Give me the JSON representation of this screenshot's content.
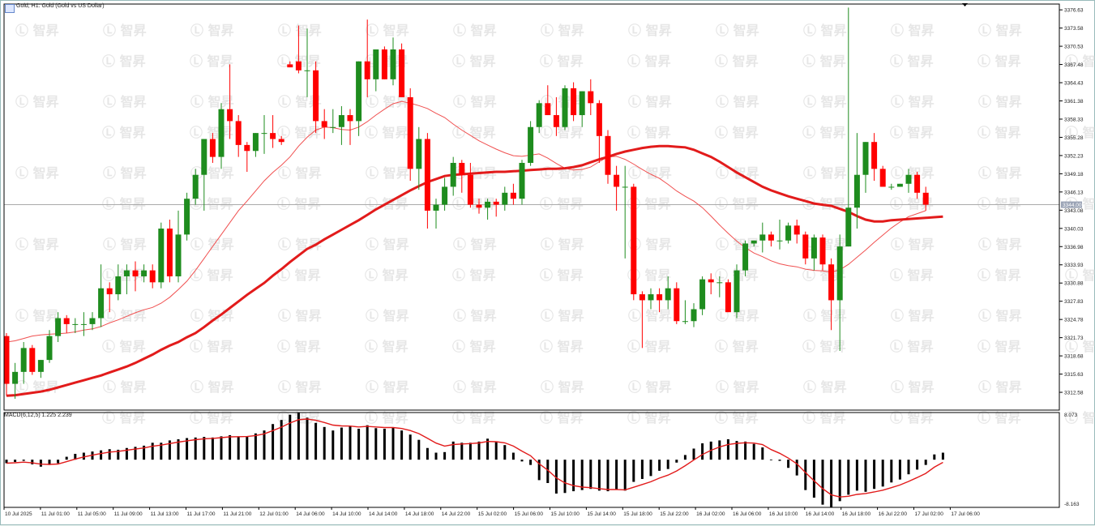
{
  "window": {
    "title": "Gold, H1:  Gold (Gold vs US Dollar)",
    "current_price_label": "3344.00",
    "watermark": "智昇"
  },
  "indicator": {
    "label": "MACD(6,12,5) 1.225 2.239",
    "top_label": "8.073",
    "bottom_label": "-8.163"
  },
  "colors": {
    "bull": "#1e8c1e",
    "bear": "#ff0000",
    "ma_slow": "#e21b1b",
    "ma_fast": "#f05050",
    "macd_hist": "#000000",
    "macd_signal": "#e21b1b",
    "price_line": "#aaaaaa"
  },
  "chart_data": [
    {
      "type": "candlestick",
      "title": "Gold, H1:  Gold (Gold vs US Dollar)",
      "symbol": "Gold",
      "timeframe": "H1",
      "ylim": [
        3309.6,
        3377.6
      ],
      "yticks": [
        3376.63,
        3373.58,
        3370.53,
        3367.48,
        3364.43,
        3361.38,
        3358.33,
        3355.28,
        3352.23,
        3349.18,
        3346.13,
        3343.08,
        3340.03,
        3336.98,
        3333.93,
        3330.88,
        3327.83,
        3324.78,
        3321.73,
        3318.68,
        3315.63,
        3312.58
      ],
      "xticks": [
        "10 Jul 2025",
        "11 Jul 01:00",
        "11 Jul 05:00",
        "11 Jul 09:00",
        "11 Jul 13:00",
        "11 Jul 17:00",
        "11 Jul 21:00",
        "12 Jul 01:00",
        "14 Jul 06:00",
        "14 Jul 10:00",
        "14 Jul 14:00",
        "14 Jul 18:00",
        "14 Jul 22:00",
        "15 Jul 02:00",
        "15 Jul 06:00",
        "15 Jul 10:00",
        "15 Jul 14:00",
        "15 Jul 18:00",
        "15 Jul 22:00",
        "16 Jul 02:00",
        "16 Jul 06:00",
        "16 Jul 10:00",
        "16 Jul 14:00",
        "16 Jul 18:00",
        "16 Jul 22:00",
        "17 Jul 02:00",
        "17 Jul 06:00"
      ],
      "current_price": 3344.0,
      "ohlc": [
        [
          3322.0,
          3322.5,
          3312.0,
          3314.0
        ],
        [
          3314.0,
          3317.5,
          3311.5,
          3316.0
        ],
        [
          3316.0,
          3321.0,
          3314.0,
          3320.0
        ],
        [
          3320.0,
          3320.5,
          3315.5,
          3316.0
        ],
        [
          3316.0,
          3318.0,
          3315.0,
          3318.0
        ],
        [
          3318.0,
          3323.0,
          3317.5,
          3322.0
        ],
        [
          3322.0,
          3326.0,
          3321.0,
          3325.0
        ],
        [
          3325.0,
          3325.5,
          3322.5,
          3324.0
        ],
        [
          3324.0,
          3325.0,
          3322.5,
          3324.0
        ],
        [
          3324.0,
          3326.0,
          3322.0,
          3324.0
        ],
        [
          3324.0,
          3326.0,
          3323.0,
          3325.0
        ],
        [
          3325.0,
          3334.0,
          3323.5,
          3330.0
        ],
        [
          3330.0,
          3331.0,
          3326.0,
          3329.0
        ],
        [
          3329.0,
          3334.0,
          3328.0,
          3332.0
        ],
        [
          3332.0,
          3334.0,
          3329.0,
          3333.0
        ],
        [
          3333.0,
          3334.5,
          3329.5,
          3332.0
        ],
        [
          3332.0,
          3334.0,
          3331.0,
          3333.0
        ],
        [
          3333.0,
          3334.0,
          3330.0,
          3331.0
        ],
        [
          3331.0,
          3341.0,
          3330.0,
          3340.0
        ],
        [
          3340.0,
          3341.5,
          3331.0,
          3332.0
        ],
        [
          3332.0,
          3343.0,
          3331.0,
          3339.0
        ],
        [
          3339.0,
          3346.0,
          3338.0,
          3345.0
        ],
        [
          3345.0,
          3350.0,
          3344.0,
          3349.0
        ],
        [
          3349.0,
          3355.0,
          3343.0,
          3355.0
        ],
        [
          3355.0,
          3356.0,
          3351.0,
          3352.0
        ],
        [
          3352.0,
          3361.0,
          3350.0,
          3360.0
        ],
        [
          3360.0,
          3367.5,
          3355.0,
          3358.0
        ],
        [
          3358.0,
          3359.0,
          3352.0,
          3354.0
        ],
        [
          3354.0,
          3354.5,
          3349.5,
          3353.0
        ],
        [
          3353.0,
          3356.0,
          3352.0,
          3356.0
        ],
        [
          3356.0,
          3359.0,
          3352.5,
          3356.0
        ],
        [
          3356.0,
          3359.0,
          3353.5,
          3355.0
        ],
        [
          3355.0,
          3355.5,
          3354.0,
          3354.5
        ],
        [
          3367.5,
          3368.0,
          3367.0,
          3367.0
        ],
        [
          3368.0,
          3374.0,
          3366.0,
          3366.5
        ],
        [
          3366.5,
          3373.5,
          3362.0,
          3366.5
        ],
        [
          3366.5,
          3368.0,
          3356.0,
          3358.0
        ],
        [
          3358.0,
          3360.0,
          3355.0,
          3357.0
        ],
        [
          3357.0,
          3360.0,
          3356.0,
          3357.0
        ],
        [
          3357.0,
          3360.5,
          3354.0,
          3359.0
        ],
        [
          3359.0,
          3360.0,
          3354.0,
          3358.0
        ],
        [
          3358.0,
          3368.0,
          3355.5,
          3368.0
        ],
        [
          3368.0,
          3375.0,
          3362.0,
          3365.0
        ],
        [
          3365.0,
          3370.0,
          3363.0,
          3370.0
        ],
        [
          3370.0,
          3370.5,
          3365.0,
          3365.0
        ],
        [
          3365.0,
          3372.0,
          3364.0,
          3370.0
        ],
        [
          3370.0,
          3371.0,
          3362.0,
          3362.0
        ],
        [
          3362.0,
          3363.5,
          3348.0,
          3350.0
        ],
        [
          3350.0,
          3357.0,
          3346.5,
          3355.0
        ],
        [
          3355.0,
          3356.0,
          3340.0,
          3343.0
        ],
        [
          3343.0,
          3345.0,
          3340.0,
          3344.0
        ],
        [
          3344.0,
          3348.5,
          3343.0,
          3347.0
        ],
        [
          3347.0,
          3352.0,
          3345.5,
          3351.0
        ],
        [
          3351.0,
          3351.5,
          3346.0,
          3349.0
        ],
        [
          3349.0,
          3351.0,
          3343.5,
          3344.0
        ],
        [
          3344.0,
          3345.0,
          3342.5,
          3343.5
        ],
        [
          3343.5,
          3345.0,
          3341.5,
          3344.5
        ],
        [
          3344.5,
          3345.0,
          3342.0,
          3344.0
        ],
        [
          3344.0,
          3347.0,
          3343.0,
          3346.0
        ],
        [
          3346.0,
          3347.5,
          3344.0,
          3345.0
        ],
        [
          3345.0,
          3351.5,
          3344.0,
          3351.0
        ],
        [
          3351.0,
          3358.0,
          3350.5,
          3357.0
        ],
        [
          3357.0,
          3361.5,
          3356.0,
          3361.0
        ],
        [
          3361.0,
          3364.0,
          3359.0,
          3359.0
        ],
        [
          3359.0,
          3362.0,
          3355.5,
          3357.0
        ],
        [
          3357.0,
          3364.0,
          3356.5,
          3363.5
        ],
        [
          3363.5,
          3364.5,
          3358.0,
          3359.0
        ],
        [
          3359.0,
          3363.0,
          3357.0,
          3363.0
        ],
        [
          3363.0,
          3365.0,
          3359.0,
          3361.0
        ],
        [
          3361.0,
          3361.5,
          3351.0,
          3355.5
        ],
        [
          3355.5,
          3356.5,
          3347.5,
          3349.0
        ],
        [
          3349.0,
          3350.5,
          3343.0,
          3347.0
        ],
        [
          3347.0,
          3350.5,
          3335.0,
          3347.0
        ],
        [
          3347.0,
          3347.5,
          3328.0,
          3329.0
        ],
        [
          3329.0,
          3329.5,
          3320.0,
          3328.0
        ],
        [
          3328.0,
          3330.0,
          3326.5,
          3329.0
        ],
        [
          3329.0,
          3330.0,
          3326.0,
          3328.0
        ],
        [
          3328.0,
          3332.0,
          3326.5,
          3330.0
        ],
        [
          3330.0,
          3331.0,
          3324.0,
          3324.5
        ],
        [
          3324.5,
          3328.0,
          3324.0,
          3324.5
        ],
        [
          3324.5,
          3327.5,
          3323.5,
          3326.5
        ],
        [
          3326.5,
          3332.0,
          3325.5,
          3331.5
        ],
        [
          3331.5,
          3332.5,
          3329.0,
          3331.0
        ],
        [
          3331.0,
          3332.0,
          3328.5,
          3331.0
        ],
        [
          3331.0,
          3331.5,
          3326.0,
          3326.0
        ],
        [
          3326.0,
          3334.0,
          3325.0,
          3333.0
        ],
        [
          3333.0,
          3338.0,
          3332.0,
          3337.5
        ],
        [
          3337.5,
          3338.0,
          3337.0,
          3338.0
        ],
        [
          3338.0,
          3341.0,
          3336.0,
          3339.0
        ],
        [
          3339.0,
          3339.5,
          3337.0,
          3338.0
        ],
        [
          3338.0,
          3341.5,
          3336.5,
          3338.0
        ],
        [
          3338.0,
          3341.0,
          3337.5,
          3340.5
        ],
        [
          3340.5,
          3341.5,
          3337.5,
          3339.0
        ],
        [
          3339.0,
          3339.5,
          3334.0,
          3335.0
        ],
        [
          3335.0,
          3339.0,
          3333.0,
          3338.5
        ],
        [
          3338.5,
          3339.0,
          3333.0,
          3334.0
        ],
        [
          3334.0,
          3335.0,
          3323.0,
          3328.0
        ],
        [
          3328.0,
          3339.0,
          3319.5,
          3337.0
        ],
        [
          3337.0,
          3377.0,
          3337.0,
          3343.5
        ],
        [
          3343.5,
          3356.0,
          3340.0,
          3349.0
        ],
        [
          3349.0,
          3354.5,
          3346.0,
          3354.5
        ],
        [
          3354.5,
          3356.0,
          3348.0,
          3350.0
        ],
        [
          3350.0,
          3350.5,
          3347.0,
          3347.0
        ],
        [
          3347.0,
          3347.5,
          3346.5,
          3347.0
        ],
        [
          3347.0,
          3347.5,
          3347.0,
          3347.5
        ],
        [
          3347.5,
          3350.0,
          3346.0,
          3349.0
        ],
        [
          3349.0,
          3349.5,
          3345.0,
          3346.0
        ],
        [
          3346.0,
          3347.0,
          3343.0,
          3344.0
        ]
      ],
      "series": [
        {
          "type": "line",
          "style": "thin",
          "values": [
            3321,
            3321.2,
            3321.6,
            3322,
            3322.2,
            3322.3,
            3322.4,
            3322.5,
            3322.7,
            3323,
            3323.2,
            3323.6,
            3324.2,
            3324.7,
            3325.3,
            3325.9,
            3326.4,
            3326.8,
            3327.5,
            3328.5,
            3329.8,
            3331.2,
            3333,
            3335,
            3337,
            3339,
            3341,
            3343,
            3344.6,
            3346.3,
            3348,
            3349.4,
            3350.6,
            3352,
            3353.8,
            3355.3,
            3356.5,
            3357,
            3356.9,
            3356.6,
            3356.5,
            3357,
            3357.9,
            3359,
            3360,
            3360.9,
            3361.3,
            3361,
            3360.6,
            3360.1,
            3359.3,
            3358.6,
            3357.5,
            3356.5,
            3355.6,
            3354.7,
            3354,
            3353.3,
            3352.7,
            3352.2,
            3352.1,
            3352.3,
            3352.5,
            3351.8,
            3350.9,
            3350.1,
            3349.8,
            3349.9,
            3350.3,
            3351.2,
            3352,
            3352.1,
            3351.6,
            3350.8,
            3349.9,
            3349.1,
            3348.4,
            3347.4,
            3346.3,
            3345.4,
            3344.6,
            3343.5,
            3342.1,
            3340.6,
            3339.2,
            3337.9,
            3336.8,
            3335.9,
            3335.3,
            3334.6,
            3334.1,
            3333.8,
            3333.6,
            3333.2,
            3333,
            3332.9,
            3332.7,
            3333.1,
            3334,
            3335.2,
            3336.4,
            3337.7,
            3338.9,
            3340.1,
            3341.1,
            3342,
            3342.5,
            3343
          ]
        },
        {
          "type": "line",
          "style": "thick",
          "values": [
            3312,
            3312.1,
            3312.3,
            3312.5,
            3312.7,
            3313,
            3313.4,
            3313.8,
            3314.2,
            3314.6,
            3315,
            3315.4,
            3315.9,
            3316.4,
            3316.9,
            3317.5,
            3318.2,
            3318.9,
            3319.7,
            3320.4,
            3321,
            3321.8,
            3322.5,
            3323.5,
            3324.6,
            3325.6,
            3326.7,
            3327.8,
            3328.9,
            3329.9,
            3330.9,
            3332.1,
            3333.2,
            3334.4,
            3335.5,
            3336.6,
            3337.3,
            3338.2,
            3339,
            3339.8,
            3340.6,
            3341.4,
            3342.3,
            3343.2,
            3344,
            3344.8,
            3345.6,
            3346.4,
            3347.1,
            3347.8,
            3348.3,
            3348.8,
            3349,
            3349.1,
            3349.2,
            3349.3,
            3349.4,
            3349.5,
            3349.5,
            3349.6,
            3349.7,
            3349.8,
            3349.9,
            3350,
            3350,
            3350.1,
            3350.3,
            3350.6,
            3351.1,
            3351.6,
            3352,
            3352.5,
            3352.9,
            3353.2,
            3353.5,
            3353.7,
            3353.8,
            3353.8,
            3353.7,
            3353.6,
            3353.2,
            3352.6,
            3352,
            3351.2,
            3350.3,
            3349.4,
            3348.6,
            3347.8,
            3347,
            3346.4,
            3345.9,
            3345.4,
            3345,
            3344.6,
            3344.2,
            3344,
            3343.8,
            3343.3,
            3342.8,
            3342.1,
            3341.5,
            3341.2,
            3341.2,
            3341.4,
            3341.5,
            3341.6,
            3341.7,
            3341.8,
            3341.9,
            3342
          ]
        }
      ]
    },
    {
      "type": "bar",
      "title": "MACD(6,12,5) 1.225 2.239",
      "ylim": [
        -8.163,
        8.073
      ],
      "values": [
        -0.6,
        -0.4,
        -0.2,
        -0.8,
        -1.2,
        -0.9,
        -0.6,
        0.5,
        1.0,
        1.2,
        1.4,
        1.6,
        1.8,
        1.7,
        2.0,
        2.2,
        2.4,
        2.9,
        2.9,
        3.3,
        3.5,
        3.7,
        3.8,
        3.9,
        3.8,
        4.0,
        4.2,
        4.0,
        4.0,
        4.5,
        5.0,
        6.1,
        6.8,
        7.7,
        8.0,
        7.2,
        6.3,
        5.6,
        5.0,
        5.5,
        5.7,
        5.3,
        5.9,
        5.4,
        5.3,
        5.5,
        5.0,
        4.3,
        3.4,
        2.0,
        1.2,
        1.3,
        3.1,
        2.9,
        2.9,
        3.1,
        3.6,
        3.0,
        2.5,
        1.2,
        -0.3,
        -0.9,
        -3.5,
        -4.0,
        -5.8,
        -5.7,
        -5.4,
        -5.2,
        -5.0,
        -5.3,
        -5.4,
        -5.1,
        -5.3,
        -3.8,
        -3.3,
        -2.8,
        -1.9,
        -1.6,
        -0.5,
        0.8,
        1.9,
        2.8,
        3.1,
        3.3,
        3.5,
        3.2,
        3.1,
        2.7,
        2.1,
        0.0,
        -0.2,
        -1.4,
        -2.7,
        -5.2,
        -6.5,
        -7.7,
        -8.2,
        -7.1,
        -6.0,
        -5.3,
        -5.5,
        -5.0,
        -4.6,
        -3.9,
        -3.4,
        -2.5,
        -1.7,
        -0.9,
        0.9,
        1.2
      ]
    }
  ]
}
